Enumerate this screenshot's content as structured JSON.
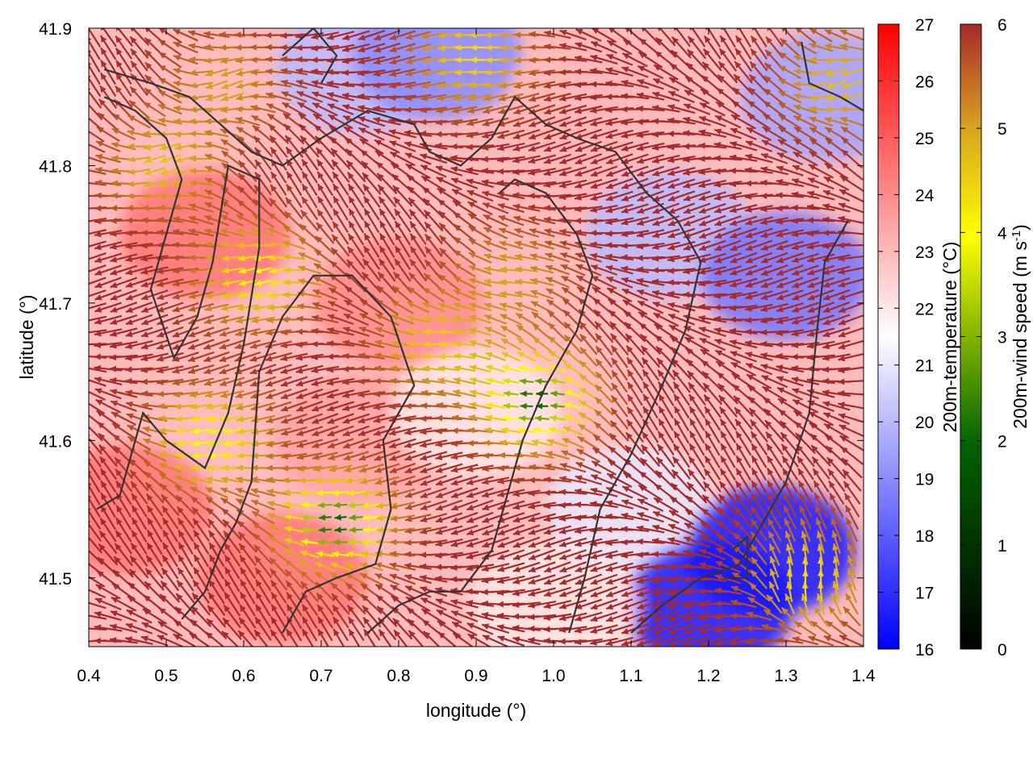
{
  "chart_data": {
    "type": "heatmap",
    "subtype": "wind-vector field over temperature map with contour lines",
    "xlabel": "longitude (°)",
    "ylabel": "latitude (°)",
    "xlim": [
      0.4,
      1.4
    ],
    "ylim": [
      41.45,
      41.9
    ],
    "xticks": [
      "0.4",
      "0.5",
      "0.6",
      "0.7",
      "0.8",
      "0.9",
      "1.0",
      "1.1",
      "1.2",
      "1.3",
      "1.4"
    ],
    "yticks": [
      "41.5",
      "41.6",
      "41.7",
      "41.8",
      "41.9"
    ],
    "xtick_values": [
      0.4,
      0.5,
      0.6,
      0.7,
      0.8,
      0.9,
      1.0,
      1.1,
      1.2,
      1.3,
      1.4
    ],
    "ytick_values": [
      41.5,
      41.6,
      41.7,
      41.8,
      41.9
    ],
    "grid": false,
    "colorbars": [
      {
        "label": "200m-temperature (°C)",
        "range": [
          16,
          27
        ],
        "ticks": [
          "27",
          "26",
          "25",
          "24",
          "23",
          "22",
          "21",
          "20",
          "19",
          "18",
          "17",
          "16"
        ],
        "tick_values": [
          27,
          26,
          25,
          24,
          23,
          22,
          21,
          20,
          19,
          18,
          17,
          16
        ],
        "colors": [
          "#0000ff",
          "#ffffff",
          "#ff0000"
        ]
      },
      {
        "label_main": "200m-wind speed (m s",
        "label_sup": "-1",
        "label_end": ")",
        "range": [
          0,
          6
        ],
        "ticks": [
          "6",
          "5",
          "4",
          "3",
          "2",
          "1",
          "0"
        ],
        "tick_values": [
          6,
          5,
          4,
          3,
          2,
          1,
          0
        ],
        "colors": [
          "#000000",
          "#006400",
          "#ffff00",
          "#daa520",
          "#a52a2a"
        ]
      }
    ],
    "temperature_regions": [
      {
        "lon": 0.8,
        "lat": 41.7,
        "value": 24
      },
      {
        "lon": 0.55,
        "lat": 41.75,
        "value": 24.5
      },
      {
        "lon": 0.65,
        "lat": 41.5,
        "value": 24.5
      },
      {
        "lon": 0.75,
        "lat": 41.6,
        "value": 23.5
      },
      {
        "lon": 1.0,
        "lat": 41.8,
        "value": 23
      },
      {
        "lon": 0.45,
        "lat": 41.55,
        "value": 24.5
      },
      {
        "lon": 0.9,
        "lat": 41.62,
        "value": 22
      },
      {
        "lon": 0.75,
        "lat": 41.87,
        "value": 20
      },
      {
        "lon": 0.85,
        "lat": 41.88,
        "value": 19
      },
      {
        "lon": 1.05,
        "lat": 41.85,
        "value": 23
      },
      {
        "lon": 1.1,
        "lat": 41.55,
        "value": 21
      },
      {
        "lon": 1.15,
        "lat": 41.75,
        "value": 20
      },
      {
        "lon": 1.3,
        "lat": 41.72,
        "value": 18.5
      },
      {
        "lon": 1.28,
        "lat": 41.52,
        "value": 16.5
      },
      {
        "lon": 1.2,
        "lat": 41.48,
        "value": 16.5
      },
      {
        "lon": 1.35,
        "lat": 41.85,
        "value": 19.5
      },
      {
        "lon": 1.0,
        "lat": 41.48,
        "value": 22
      }
    ],
    "wind_regions": [
      {
        "lon": 0.98,
        "lat": 41.63,
        "speed": 1.5,
        "dir_deg": 180
      },
      {
        "lon": 0.72,
        "lat": 41.54,
        "speed": 1.5,
        "dir_deg": 185
      },
      {
        "lon": 0.56,
        "lat": 41.6,
        "speed": 2.8,
        "dir_deg": 190
      },
      {
        "lon": 0.62,
        "lat": 41.72,
        "speed": 3.0,
        "dir_deg": 195
      },
      {
        "lon": 0.85,
        "lat": 41.67,
        "speed": 3.8,
        "dir_deg": 180
      },
      {
        "lon": 0.5,
        "lat": 41.8,
        "speed": 4.0,
        "dir_deg": 200
      },
      {
        "lon": 0.58,
        "lat": 41.86,
        "speed": 4.5,
        "dir_deg": 200
      },
      {
        "lon": 0.95,
        "lat": 41.72,
        "speed": 4.5,
        "dir_deg": 175
      },
      {
        "lon": 1.33,
        "lat": 41.5,
        "speed": 3.5,
        "dir_deg": 90
      },
      {
        "lon": 1.37,
        "lat": 41.86,
        "speed": 4.0,
        "dir_deg": 200
      },
      {
        "lon": 0.9,
        "lat": 41.88,
        "speed": 3.5,
        "dir_deg": 180
      }
    ],
    "background_wind_speed": 6,
    "contour_lines": [
      [
        [
          0.42,
          41.87
        ],
        [
          0.48,
          41.86
        ],
        [
          0.53,
          41.85
        ],
        [
          0.57,
          41.83
        ],
        [
          0.61,
          41.81
        ],
        [
          0.65,
          41.8
        ],
        [
          0.7,
          41.82
        ],
        [
          0.76,
          41.84
        ],
        [
          0.82,
          41.83
        ],
        [
          0.84,
          41.81
        ],
        [
          0.88,
          41.8
        ],
        [
          0.92,
          41.82
        ],
        [
          0.95,
          41.85
        ],
        [
          0.99,
          41.83
        ],
        [
          1.03,
          41.82
        ],
        [
          1.08,
          41.81
        ],
        [
          1.12,
          41.78
        ],
        [
          1.16,
          41.76
        ],
        [
          1.19,
          41.73
        ],
        [
          1.17,
          41.68
        ],
        [
          1.14,
          41.64
        ],
        [
          1.1,
          41.59
        ],
        [
          1.06,
          41.55
        ],
        [
          1.04,
          41.5
        ],
        [
          1.02,
          41.46
        ]
      ],
      [
        [
          0.42,
          41.85
        ],
        [
          0.46,
          41.84
        ],
        [
          0.5,
          41.82
        ],
        [
          0.52,
          41.79
        ],
        [
          0.5,
          41.75
        ],
        [
          0.48,
          41.71
        ],
        [
          0.51,
          41.66
        ],
        [
          0.54,
          41.69
        ],
        [
          0.56,
          41.73
        ],
        [
          0.58,
          41.8
        ],
        [
          0.62,
          41.79
        ],
        [
          0.62,
          41.74
        ],
        [
          0.6,
          41.67
        ],
        [
          0.58,
          41.62
        ],
        [
          0.55,
          41.58
        ],
        [
          0.5,
          41.6
        ],
        [
          0.47,
          41.62
        ],
        [
          0.44,
          41.56
        ],
        [
          0.41,
          41.55
        ]
      ],
      [
        [
          0.52,
          41.47
        ],
        [
          0.55,
          41.49
        ],
        [
          0.57,
          41.52
        ],
        [
          0.59,
          41.54
        ],
        [
          0.61,
          41.57
        ],
        [
          0.62,
          41.65
        ],
        [
          0.65,
          41.69
        ],
        [
          0.69,
          41.72
        ],
        [
          0.74,
          41.72
        ],
        [
          0.79,
          41.69
        ],
        [
          0.82,
          41.64
        ],
        [
          0.8,
          41.62
        ],
        [
          0.78,
          41.6
        ],
        [
          0.79,
          41.55
        ],
        [
          0.77,
          41.51
        ],
        [
          0.72,
          41.5
        ],
        [
          0.68,
          41.49
        ],
        [
          0.65,
          41.46
        ]
      ],
      [
        [
          0.76,
          41.46
        ],
        [
          0.8,
          41.48
        ],
        [
          0.84,
          41.49
        ],
        [
          0.88,
          41.49
        ],
        [
          0.92,
          41.52
        ],
        [
          0.94,
          41.56
        ],
        [
          0.96,
          41.6
        ],
        [
          0.99,
          41.64
        ],
        [
          1.03,
          41.68
        ],
        [
          1.05,
          41.72
        ],
        [
          1.03,
          41.75
        ],
        [
          0.99,
          41.78
        ],
        [
          0.95,
          41.79
        ],
        [
          0.93,
          41.78
        ]
      ],
      [
        [
          1.1,
          41.46
        ],
        [
          1.14,
          41.48
        ],
        [
          1.19,
          41.5
        ],
        [
          1.24,
          41.51
        ],
        [
          1.3,
          41.57
        ],
        [
          1.33,
          41.62
        ],
        [
          1.34,
          41.68
        ],
        [
          1.35,
          41.73
        ],
        [
          1.38,
          41.76
        ]
      ],
      [
        [
          0.65,
          41.88
        ],
        [
          0.69,
          41.9
        ],
        [
          0.72,
          41.88
        ],
        [
          0.7,
          41.86
        ]
      ],
      [
        [
          1.23,
          41.52
        ],
        [
          1.25,
          41.53
        ],
        [
          1.25,
          41.5
        ],
        [
          1.22,
          41.5
        ]
      ],
      [
        [
          1.32,
          41.89
        ],
        [
          1.33,
          41.86
        ],
        [
          1.37,
          41.85
        ],
        [
          1.4,
          41.84
        ]
      ]
    ]
  }
}
